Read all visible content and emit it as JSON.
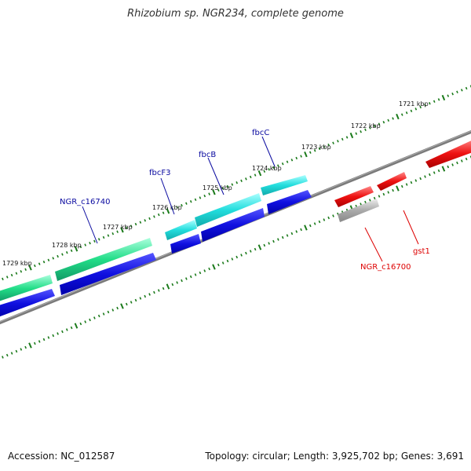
{
  "title": "Rhizobium sp. NGR234, complete genome",
  "accession": "Accession: NC_012587",
  "summary": "Topology: circular; Length: 3,925,702 bp; Genes: 3,691",
  "kbp_labels": [
    "1721 kbp",
    "1722 kbp",
    "1723 kbp",
    "1724 kbp",
    "1725 kbp",
    "1726 kbp",
    "1727 kbp",
    "1728 kbp",
    "1729 kbp"
  ],
  "genes": [
    {
      "name": "fbcC",
      "color": "#0a0aa0"
    },
    {
      "name": "fbcB",
      "color": "#0a0aa0"
    },
    {
      "name": "fbcF3",
      "color": "#0a0aa0"
    },
    {
      "name": "NGR_c16740",
      "color": "#0a0aa0"
    },
    {
      "name": "NGR_c16700",
      "color": "#dd0000"
    },
    {
      "name": "gst1",
      "color": "#dd0000"
    }
  ],
  "colors": {
    "backbone": "#777777",
    "tick": "#1a7a1a",
    "cds_cyan": "#22dddd",
    "cds_green": "#22dd88",
    "cds_blue": "#1010e0",
    "cds_red": "#ee1111",
    "cds_gray": "#aaaaaa"
  }
}
